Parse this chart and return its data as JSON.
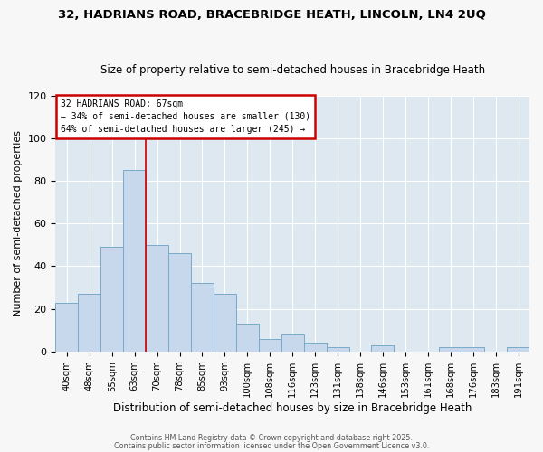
{
  "title1": "32, HADRIANS ROAD, BRACEBRIDGE HEATH, LINCOLN, LN4 2UQ",
  "title2": "Size of property relative to semi-detached houses in Bracebridge Heath",
  "xlabel": "Distribution of semi-detached houses by size in Bracebridge Heath",
  "ylabel": "Number of semi-detached properties",
  "categories": [
    "40sqm",
    "48sqm",
    "55sqm",
    "63sqm",
    "70sqm",
    "78sqm",
    "85sqm",
    "93sqm",
    "100sqm",
    "108sqm",
    "116sqm",
    "123sqm",
    "131sqm",
    "138sqm",
    "146sqm",
    "153sqm",
    "161sqm",
    "168sqm",
    "176sqm",
    "183sqm",
    "191sqm"
  ],
  "values": [
    23,
    27,
    49,
    85,
    50,
    46,
    32,
    27,
    13,
    6,
    8,
    4,
    2,
    0,
    3,
    0,
    0,
    2,
    2,
    0,
    2
  ],
  "bar_color": "#c8d8ec",
  "bar_edge_color": "#7aaac8",
  "property_line_x": 3.5,
  "annotation_label": "32 HADRIANS ROAD: 67sqm",
  "annotation_line1": "← 34% of semi-detached houses are smaller (130)",
  "annotation_line2": "64% of semi-detached houses are larger (245) →",
  "ylim": [
    0,
    120
  ],
  "yticks": [
    0,
    20,
    40,
    60,
    80,
    100,
    120
  ],
  "footnote1": "Contains HM Land Registry data © Crown copyright and database right 2025.",
  "footnote2": "Contains public sector information licensed under the Open Government Licence v3.0.",
  "fig_bg_color": "#f7f7f7",
  "plot_bg_color": "#dde8f0",
  "grid_color": "#ffffff",
  "red_line_color": "#cc0000",
  "box_edge_color": "#cc0000",
  "title1_fontsize": 9.5,
  "title2_fontsize": 8.5
}
